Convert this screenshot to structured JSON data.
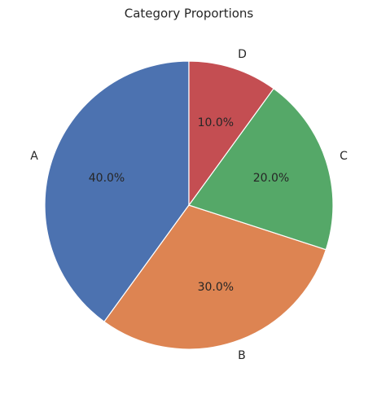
{
  "chart_data": {
    "type": "pie",
    "title": "Category Proportions",
    "categories": [
      "A",
      "B",
      "C",
      "D"
    ],
    "values": [
      40,
      30,
      20,
      10
    ],
    "value_labels": [
      "40.0%",
      "30.0%",
      "20.0%",
      "10.0%"
    ],
    "colors": [
      "#4c72b0",
      "#dd8452",
      "#55a868",
      "#c44e52"
    ]
  }
}
